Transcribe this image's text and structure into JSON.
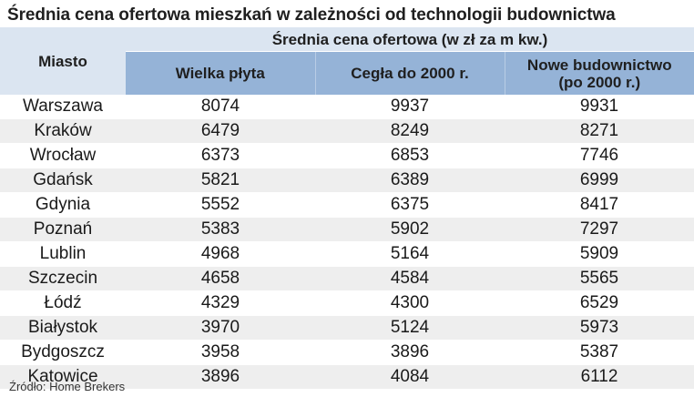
{
  "title": "Średnia cena ofertowa mieszkań w zależności od technologii budownictwa",
  "header": {
    "city": "Miasto",
    "group": "Średnia cena ofertowa (w zł za m kw.)",
    "columns": [
      "Wielka płyta",
      "Cegła do 2000 r.",
      "Nowe budownictwo\n(po 2000 r.)"
    ]
  },
  "chart_data": {
    "type": "table",
    "columns": [
      "Miasto",
      "Wielka płyta",
      "Cegła do 2000 r.",
      "Nowe budownictwo (po 2000 r.)"
    ],
    "rows": [
      [
        "Warszawa",
        8074,
        9937,
        9931
      ],
      [
        "Kraków",
        6479,
        8249,
        8271
      ],
      [
        "Wrocław",
        6373,
        6853,
        7746
      ],
      [
        "Gdańsk",
        5821,
        6389,
        6999
      ],
      [
        "Gdynia",
        5552,
        6375,
        8417
      ],
      [
        "Poznań",
        5383,
        5902,
        7297
      ],
      [
        "Lublin",
        4968,
        5164,
        5909
      ],
      [
        "Szczecin",
        4658,
        4584,
        5565
      ],
      [
        "Łódź",
        4329,
        4300,
        6529
      ],
      [
        "Białystok",
        3970,
        5124,
        5973
      ],
      [
        "Bydgoszcz",
        3958,
        3896,
        5387
      ],
      [
        "Katowice",
        3896,
        4084,
        6112
      ]
    ]
  },
  "source": "Źródło: Home Brekers",
  "colors": {
    "header_light": "#dbe5f1",
    "header_dark": "#95b3d7",
    "row_alt": "#eeeeee"
  }
}
